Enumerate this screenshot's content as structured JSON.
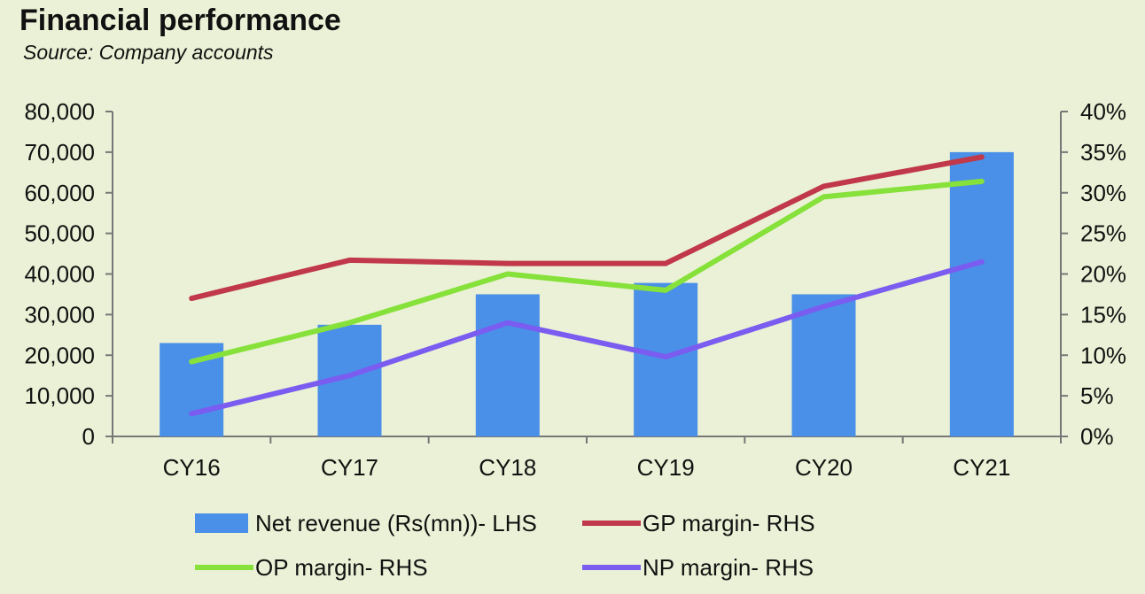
{
  "chart_data": {
    "type": "bar",
    "title": "Financial performance",
    "subtitle": "Source: Company accounts",
    "categories": [
      "CY16",
      "CY17",
      "CY18",
      "CY19",
      "CY20",
      "CY21"
    ],
    "series": [
      {
        "name": "Net revenue (Rs(mn))- LHS",
        "type": "bar",
        "axis": "left",
        "color": "#4a90e8",
        "values": [
          23000,
          27500,
          35000,
          37800,
          35000,
          70000
        ]
      },
      {
        "name": "GP margin- RHS",
        "type": "line",
        "axis": "right",
        "color": "#c0384a",
        "values": [
          17.0,
          21.7,
          21.3,
          21.3,
          30.8,
          34.4
        ]
      },
      {
        "name": "OP margin- RHS",
        "type": "line",
        "axis": "right",
        "color": "#86e13a",
        "values": [
          9.2,
          14.0,
          20.0,
          18.0,
          29.5,
          31.4
        ]
      },
      {
        "name": "NP margin- RHS",
        "type": "line",
        "axis": "right",
        "color": "#7a5cf0",
        "values": [
          2.8,
          7.5,
          14.0,
          9.8,
          16.0,
          21.5
        ]
      }
    ],
    "left_axis": {
      "ylim": [
        0,
        80000
      ],
      "ticks": [
        0,
        10000,
        20000,
        30000,
        40000,
        50000,
        60000,
        70000,
        80000
      ],
      "tick_labels": [
        "0",
        "10,000",
        "20,000",
        "30,000",
        "40,000",
        "50,000",
        "60,000",
        "70,000",
        "80,000"
      ]
    },
    "right_axis": {
      "ylim": [
        0,
        40
      ],
      "ticks": [
        0,
        5,
        10,
        15,
        20,
        25,
        30,
        35,
        40
      ],
      "tick_labels": [
        "0%",
        "5%",
        "10%",
        "15%",
        "20%",
        "25%",
        "30%",
        "35%",
        "40%"
      ]
    },
    "grid": false,
    "legend_position": "bottom"
  }
}
